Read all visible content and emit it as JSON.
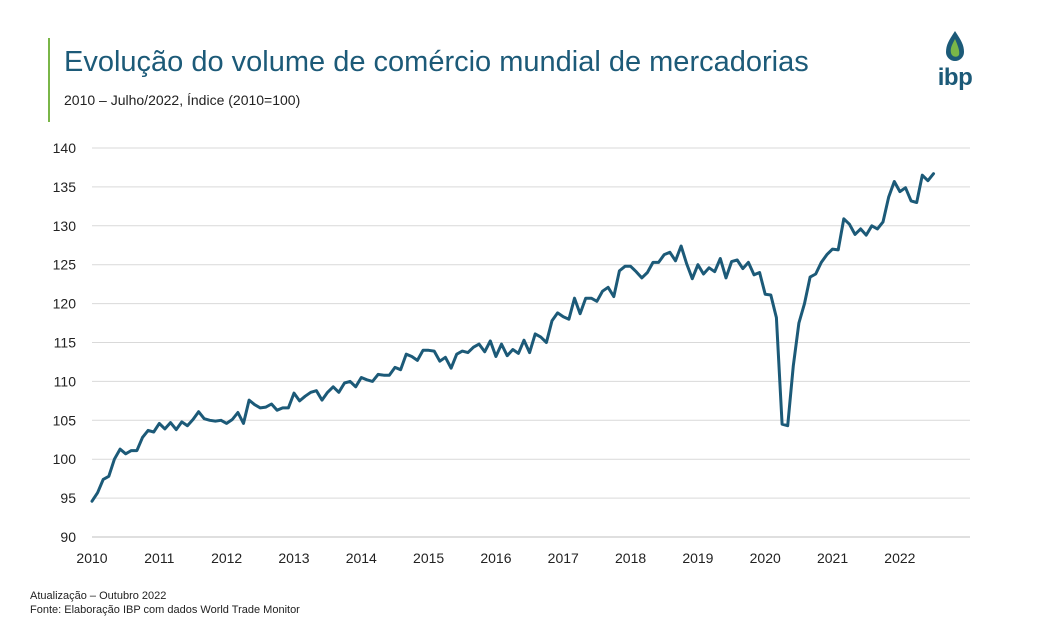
{
  "header": {
    "title": "Evolução do volume de comércio mundial de mercadorias",
    "subtitle": "2010 – Julho/2022, Índice (2010=100)"
  },
  "logo": {
    "text": "ibp",
    "icon": "drop-flame-icon",
    "colors": [
      "#1c5a78",
      "#7ab648"
    ]
  },
  "footer": {
    "update": "Atualização – Outubro 2022",
    "source": "Fonte: Elaboração IBP com dados World Trade Monitor"
  },
  "chart_data": {
    "type": "line",
    "title": "Evolução do volume de comércio mundial de mercadorias",
    "subtitle": "2010 – Julho/2022, Índice (2010=100)",
    "xlabel": "",
    "ylabel": "",
    "ylim": [
      90,
      140
    ],
    "yticks": [
      "90",
      "95",
      "100",
      "105",
      "110",
      "115",
      "120",
      "125",
      "130",
      "135",
      "140"
    ],
    "xticks": [
      "2010",
      "2011",
      "2012",
      "2013",
      "2014",
      "2015",
      "2016",
      "2017",
      "2018",
      "2019",
      "2020",
      "2021",
      "2022"
    ],
    "grid": "horizontal",
    "line_color": "#1c5a78",
    "series": [
      {
        "x_start": "2010-01",
        "frequency": "monthly",
        "values": [
          94.6,
          95.7,
          97.4,
          97.8,
          100.0,
          101.3,
          100.7,
          101.1,
          101.1,
          102.8,
          103.7,
          103.5,
          104.6,
          103.9,
          104.7,
          103.8,
          104.8,
          104.3,
          105.1,
          106.1,
          105.2,
          105.0,
          104.9,
          105.0,
          104.6,
          105.1,
          106.0,
          104.6,
          107.6,
          107.0,
          106.6,
          106.7,
          107.1,
          106.3,
          106.6,
          106.6,
          108.5,
          107.5,
          108.1,
          108.6,
          108.8,
          107.6,
          108.6,
          109.3,
          108.6,
          109.8,
          110.0,
          109.3,
          110.5,
          110.2,
          110.0,
          110.9,
          110.8,
          110.8,
          111.8,
          111.5,
          113.5,
          113.2,
          112.7,
          114.0,
          114.0,
          113.9,
          112.6,
          113.1,
          111.7,
          113.5,
          113.9,
          113.7,
          114.4,
          114.8,
          113.8,
          115.2,
          113.2,
          114.8,
          113.3,
          114.1,
          113.6,
          115.3,
          113.7,
          116.1,
          115.7,
          115.0,
          117.8,
          118.8,
          118.3,
          118.0,
          120.7,
          118.7,
          120.7,
          120.7,
          120.3,
          121.6,
          122.1,
          120.9,
          124.2,
          124.8,
          124.8,
          124.1,
          123.3,
          124.0,
          125.3,
          125.3,
          126.3,
          126.6,
          125.5,
          127.4,
          125.1,
          123.2,
          125.0,
          123.8,
          124.6,
          124.1,
          125.8,
          123.3,
          125.4,
          125.6,
          124.5,
          125.3,
          123.7,
          124.0,
          121.2,
          121.1,
          118.2,
          104.5,
          104.3,
          112.0,
          117.5,
          120.0,
          123.4,
          123.8,
          125.3,
          126.3,
          127.0,
          126.9,
          130.9,
          130.2,
          128.9,
          129.6,
          128.8,
          130.0,
          129.6,
          130.5,
          133.7,
          135.7,
          134.4,
          134.9,
          133.2,
          133.0,
          136.5,
          135.8,
          136.7
        ]
      }
    ]
  }
}
